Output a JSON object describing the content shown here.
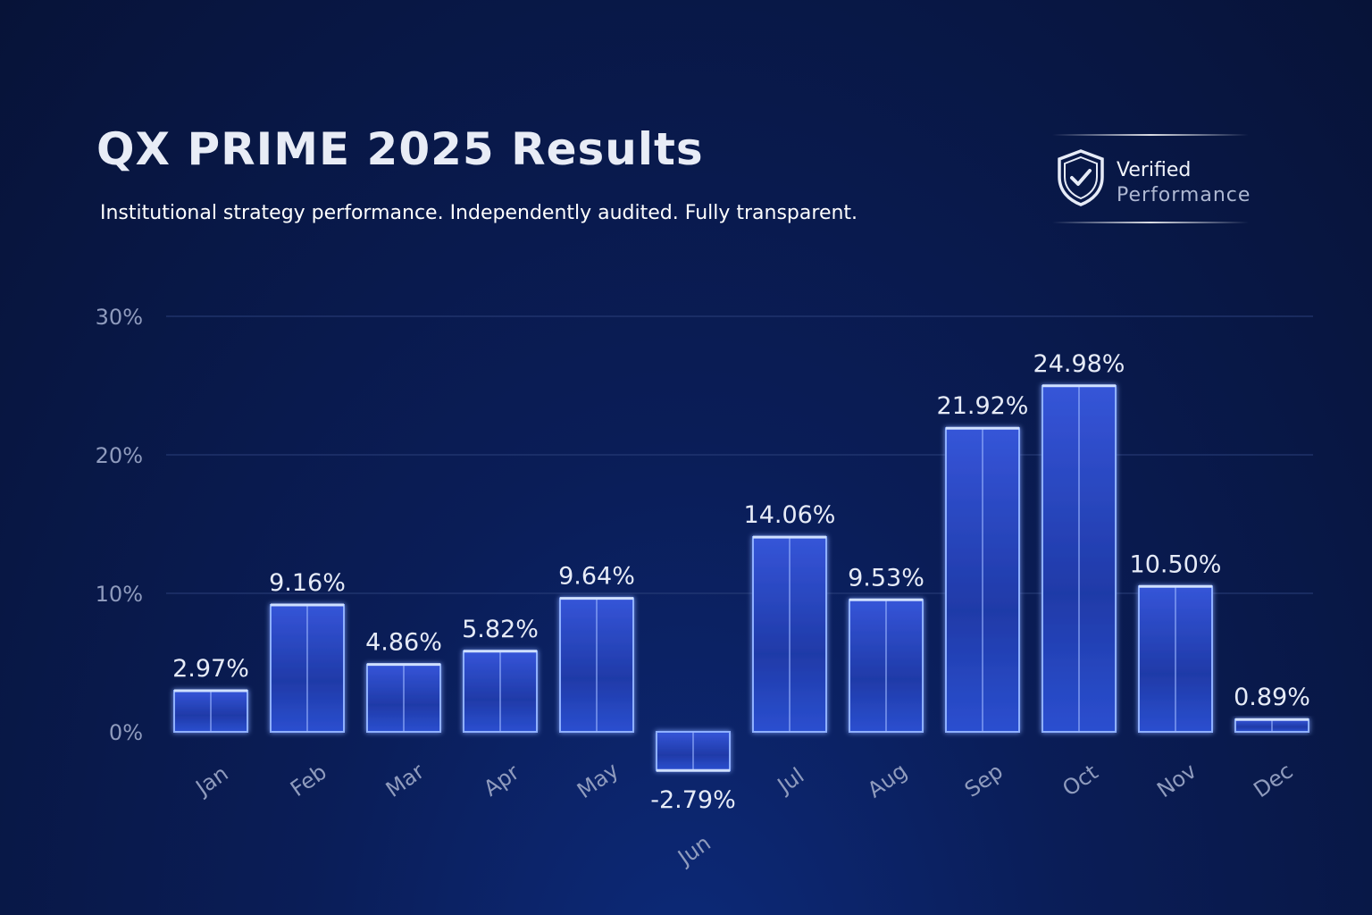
{
  "header": {
    "title": "QX PRIME 2025 Results",
    "subtitle": "Institutional strategy performance. Independently audited. Fully transparent."
  },
  "badge": {
    "line1": "Verified",
    "line2": "Performance",
    "icon": "shield-check-icon"
  },
  "chart_data": {
    "type": "bar",
    "categories": [
      "Jan",
      "Feb",
      "Mar",
      "Apr",
      "May",
      "Jun",
      "Jul",
      "Aug",
      "Sep",
      "Oct",
      "Nov",
      "Dec"
    ],
    "values": [
      2.97,
      9.16,
      4.86,
      5.82,
      9.64,
      -2.79,
      14.06,
      9.53,
      21.92,
      24.98,
      10.5,
      0.89
    ],
    "data_labels": [
      "2.97%",
      "9.16%",
      "4.86%",
      "5.82%",
      "9.64%",
      "-2.79%",
      "14.06%",
      "9.53%",
      "21.92%",
      "24.98%",
      "10.50%",
      "0.89%"
    ],
    "y_ticks": [
      0,
      10,
      20,
      30
    ],
    "y_tick_labels": [
      "0%",
      "10%",
      "20%",
      "30%"
    ],
    "ylim": [
      -2.79,
      30
    ],
    "grid": true,
    "colors": {
      "bar": "#2a46c8",
      "bar_edge": "#8fb0ff",
      "grid": "#2a3f7a",
      "tick": "#8f9bbd"
    }
  }
}
